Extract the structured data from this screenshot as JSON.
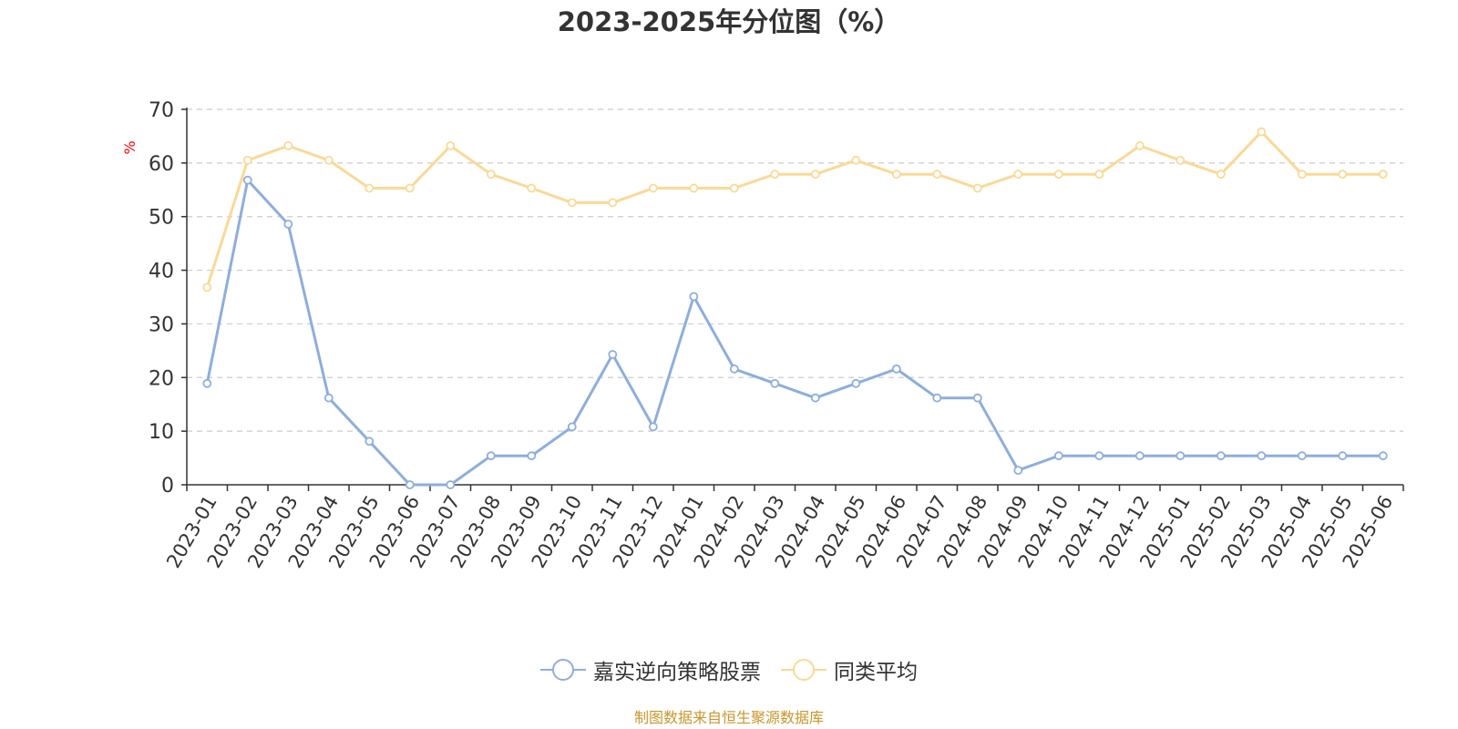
{
  "chart_data": {
    "type": "line",
    "title": "2023-2025年分位图（%）",
    "ylabel": "%",
    "ylim": [
      0,
      70
    ],
    "yticks": [
      0,
      10,
      20,
      30,
      40,
      50,
      60,
      70
    ],
    "grid": true,
    "legend_position": "bottom",
    "categories": [
      "2023-01",
      "2023-02",
      "2023-03",
      "2023-04",
      "2023-05",
      "2023-06",
      "2023-07",
      "2023-08",
      "2023-09",
      "2023-10",
      "2023-11",
      "2023-12",
      "2024-01",
      "2024-02",
      "2024-03",
      "2024-04",
      "2024-05",
      "2024-06",
      "2024-07",
      "2024-08",
      "2024-09",
      "2024-10",
      "2024-11",
      "2024-12",
      "2025-01",
      "2025-02",
      "2025-03",
      "2025-04",
      "2025-05",
      "2025-06"
    ],
    "series": [
      {
        "name": "嘉实逆向策略股票",
        "color": "#8eaedb",
        "values": [
          18.9,
          56.8,
          48.6,
          16.2,
          8.1,
          0,
          0,
          5.4,
          5.4,
          10.8,
          24.3,
          10.8,
          35.1,
          21.6,
          18.9,
          16.2,
          18.9,
          21.6,
          16.2,
          16.2,
          2.7,
          5.4,
          5.4,
          5.4,
          5.4,
          5.4,
          5.4,
          5.4,
          5.4,
          5.4
        ]
      },
      {
        "name": "同类平均",
        "color": "#fad996",
        "values": [
          36.8,
          60.5,
          63.2,
          60.5,
          55.3,
          55.3,
          63.2,
          57.9,
          55.3,
          52.6,
          52.6,
          55.3,
          55.3,
          55.3,
          57.9,
          57.9,
          60.5,
          57.9,
          57.9,
          55.3,
          57.9,
          57.9,
          57.9,
          63.2,
          60.5,
          57.9,
          65.8,
          57.9,
          57.9,
          57.9
        ]
      }
    ]
  },
  "source_note": "制图数据来自恒生聚源数据库",
  "colors": {
    "axis": "#333333",
    "grid": "#cccccc",
    "ylabel": "#ff0000",
    "source": "#c9962c"
  }
}
